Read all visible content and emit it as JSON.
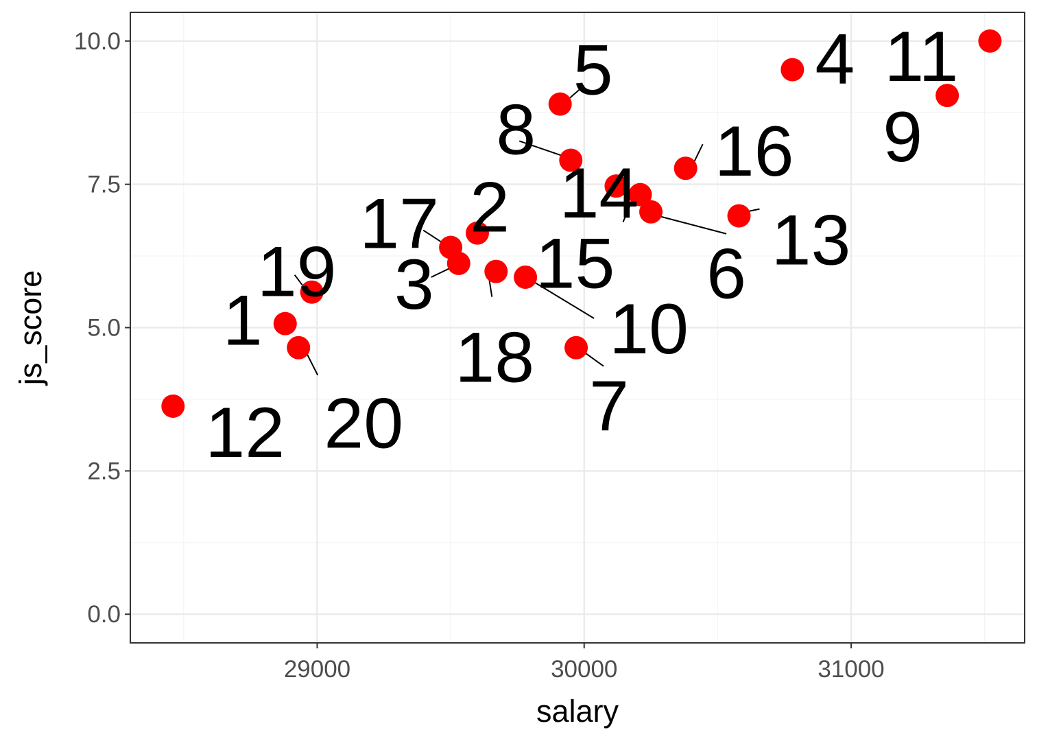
{
  "chart_data": {
    "type": "scatter",
    "title": "",
    "xlabel": "salary",
    "ylabel": "js_score",
    "xlim": [
      28300,
      31650
    ],
    "ylim": [
      -0.5,
      10.5
    ],
    "x_ticks": [
      29000,
      30000,
      31000
    ],
    "y_ticks": [
      0.0,
      2.5,
      5.0,
      7.5,
      10.0
    ],
    "x_tick_labels": [
      "29000",
      "30000",
      "31000"
    ],
    "y_tick_labels": [
      "0.0",
      "2.5",
      "5.0",
      "7.5",
      "10.0"
    ],
    "grid": true,
    "point_color": "#ff0000",
    "points": [
      {
        "label": "1",
        "x": 28880,
        "y": 5.07
      },
      {
        "label": "2",
        "x": 29600,
        "y": 6.65
      },
      {
        "label": "3",
        "x": 29530,
        "y": 6.12
      },
      {
        "label": "4",
        "x": 30780,
        "y": 9.5
      },
      {
        "label": "5",
        "x": 29910,
        "y": 8.9
      },
      {
        "label": "6",
        "x": 30250,
        "y": 7.02
      },
      {
        "label": "7",
        "x": 29970,
        "y": 4.65
      },
      {
        "label": "8",
        "x": 29950,
        "y": 7.92
      },
      {
        "label": "9",
        "x": 31360,
        "y": 9.05
      },
      {
        "label": "10",
        "x": 29780,
        "y": 5.88
      },
      {
        "label": "11",
        "x": 31520,
        "y": 10.0
      },
      {
        "label": "12",
        "x": 28460,
        "y": 3.63
      },
      {
        "label": "13",
        "x": 30580,
        "y": 6.95
      },
      {
        "label": "14",
        "x": 30120,
        "y": 7.47
      },
      {
        "label": "15",
        "x": 30210,
        "y": 7.32
      },
      {
        "label": "16",
        "x": 30380,
        "y": 7.78
      },
      {
        "label": "17",
        "x": 29500,
        "y": 6.4
      },
      {
        "label": "18",
        "x": 29670,
        "y": 5.98
      },
      {
        "label": "19",
        "x": 28980,
        "y": 5.62
      },
      {
        "label": "20",
        "x": 28930,
        "y": 4.65
      }
    ]
  }
}
